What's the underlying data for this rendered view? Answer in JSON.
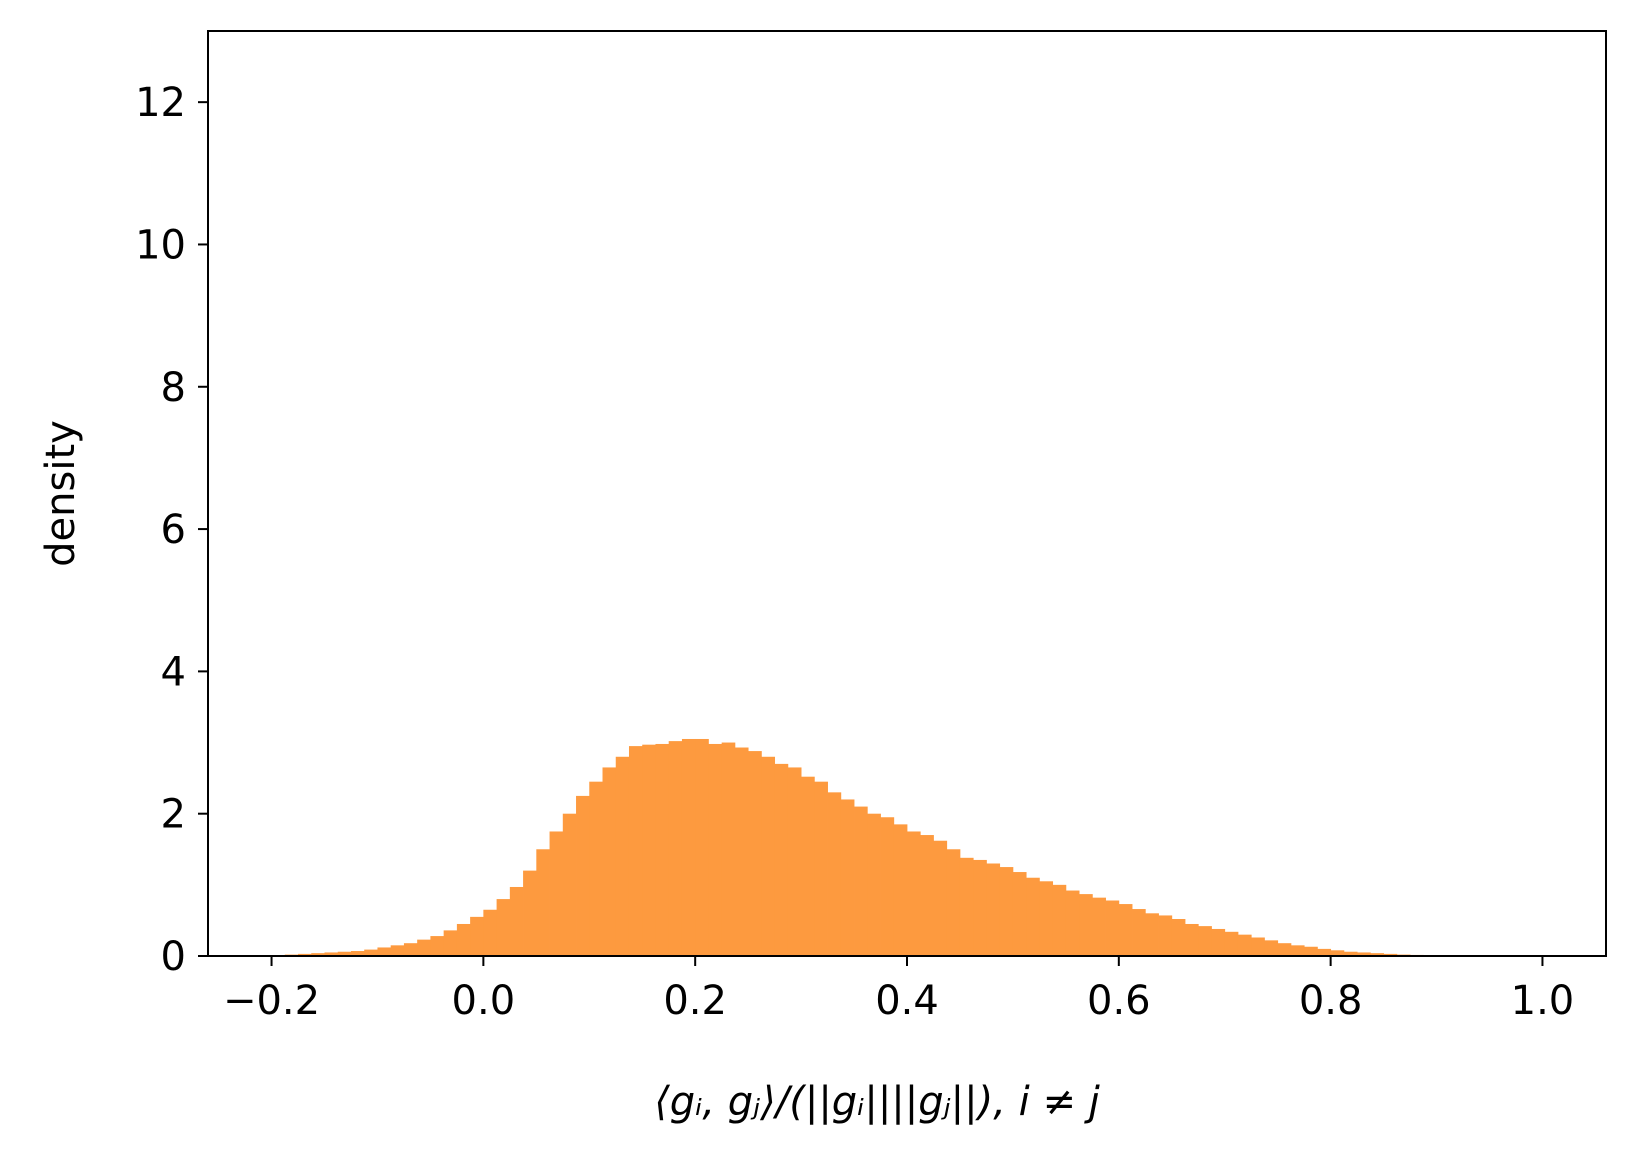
{
  "chart_data": {
    "type": "bar",
    "subtype": "histogram",
    "title": "",
    "xlabel": "⟨gᵢ, gⱼ⟩/(||gᵢ||||gⱼ||), i ≠ j",
    "ylabel": "density",
    "xlim": [
      -0.26,
      1.06
    ],
    "ylim": [
      0,
      13
    ],
    "xticks": [
      -0.2,
      0.0,
      0.2,
      0.4,
      0.6,
      0.8,
      1.0
    ],
    "xtick_labels": [
      "−0.2",
      "0.0",
      "0.2",
      "0.4",
      "0.6",
      "0.8",
      "1.0"
    ],
    "yticks": [
      0,
      2,
      4,
      6,
      8,
      10,
      12
    ],
    "ytick_labels": [
      "0",
      "2",
      "4",
      "6",
      "8",
      "10",
      "12"
    ],
    "grid": false,
    "legend": null,
    "bar_color": "#fd9a3f",
    "bin_start": -0.2,
    "bin_width": 0.0125,
    "values": [
      0.01,
      0.02,
      0.03,
      0.04,
      0.05,
      0.06,
      0.07,
      0.09,
      0.12,
      0.15,
      0.18,
      0.23,
      0.28,
      0.36,
      0.45,
      0.55,
      0.65,
      0.8,
      0.97,
      1.2,
      1.5,
      1.75,
      2.0,
      2.25,
      2.45,
      2.65,
      2.8,
      2.95,
      2.97,
      2.98,
      3.02,
      3.05,
      3.05,
      2.98,
      3.0,
      2.93,
      2.88,
      2.8,
      2.7,
      2.65,
      2.52,
      2.45,
      2.3,
      2.2,
      2.1,
      2.0,
      1.95,
      1.85,
      1.75,
      1.7,
      1.62,
      1.5,
      1.38,
      1.35,
      1.3,
      1.25,
      1.18,
      1.1,
      1.05,
      1.0,
      0.92,
      0.87,
      0.82,
      0.78,
      0.73,
      0.66,
      0.6,
      0.57,
      0.52,
      0.45,
      0.42,
      0.38,
      0.34,
      0.3,
      0.26,
      0.22,
      0.18,
      0.15,
      0.13,
      0.1,
      0.08,
      0.06,
      0.05,
      0.04,
      0.03,
      0.02,
      0.015,
      0.01,
      0.005,
      0.003,
      0.002,
      0.001,
      0.001,
      0.0,
      0.0,
      0.0,
      0.0,
      0.0,
      0.0,
      0.0
    ]
  }
}
